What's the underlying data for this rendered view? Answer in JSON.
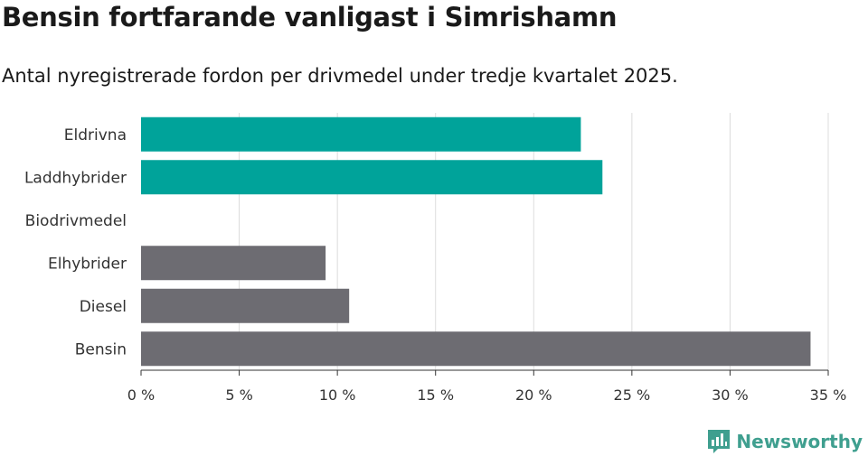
{
  "chart_data": {
    "type": "bar",
    "orientation": "horizontal",
    "title": "Bensin fortfarande vanligast i Simrishamn",
    "subtitle": "Antal nyregistrerade fordon per drivmedel under tredje kvartalet 2025.",
    "categories": [
      "Eldrivna",
      "Laddhybrider",
      "Biodrivmedel",
      "Elhybrider",
      "Diesel",
      "Bensin"
    ],
    "values": [
      22.4,
      23.5,
      0,
      9.4,
      10.6,
      34.1
    ],
    "bar_colors": [
      "#00a39a",
      "#00a39a",
      "#00a39a",
      "#6d6c72",
      "#6d6c72",
      "#6d6c72"
    ],
    "xlim": [
      0,
      35
    ],
    "xticks": [
      0,
      5,
      10,
      15,
      20,
      25,
      30,
      35
    ],
    "xtick_labels": [
      "0 %",
      "5 %",
      "10 %",
      "15 %",
      "20 %",
      "25 %",
      "30 %",
      "35 %"
    ],
    "xlabel": "",
    "ylabel": "",
    "grid": true,
    "legend": "none"
  },
  "logo": {
    "text": "Newsworthy",
    "icon": "bar-chart-icon",
    "color": "#3f9f8f"
  }
}
